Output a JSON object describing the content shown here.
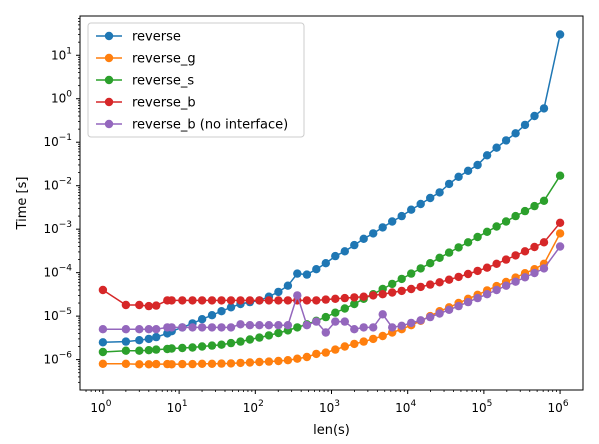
{
  "chart_data": {
    "type": "line",
    "title": "",
    "xlabel": "len(s)",
    "ylabel": "Time [s]",
    "xscale": "log",
    "yscale": "log",
    "xlim": [
      0.5,
      2000000
    ],
    "ylim": [
      2e-07,
      80
    ],
    "grid": false,
    "legend_position": "upper-left",
    "x_ticks": [
      {
        "value": 1,
        "base": "10",
        "exp": "0"
      },
      {
        "value": 10,
        "base": "10",
        "exp": "1"
      },
      {
        "value": 100,
        "base": "10",
        "exp": "2"
      },
      {
        "value": 1000,
        "base": "10",
        "exp": "3"
      },
      {
        "value": 10000,
        "base": "10",
        "exp": "4"
      },
      {
        "value": 100000,
        "base": "10",
        "exp": "5"
      },
      {
        "value": 1000000,
        "base": "10",
        "exp": "6"
      }
    ],
    "y_ticks": [
      {
        "value": 1e-06,
        "base": "10",
        "exp": "−6"
      },
      {
        "value": 1e-05,
        "base": "10",
        "exp": "−5"
      },
      {
        "value": 0.0001,
        "base": "10",
        "exp": "−4"
      },
      {
        "value": 0.001,
        "base": "10",
        "exp": "−3"
      },
      {
        "value": 0.01,
        "base": "10",
        "exp": "−2"
      },
      {
        "value": 0.1,
        "base": "10",
        "exp": "−1"
      },
      {
        "value": 1,
        "base": "10",
        "exp": "0"
      },
      {
        "value": 10,
        "base": "10",
        "exp": "1"
      }
    ],
    "x": [
      1,
      2,
      3,
      4,
      5,
      7,
      8,
      11,
      15,
      20,
      27,
      36,
      48,
      64,
      85,
      113,
      151,
      201,
      268,
      356,
      475,
      632,
      842,
      1121,
      1493,
      1989,
      2650,
      3530,
      4702,
      6264,
      8343,
      11114,
      14804,
      19721,
      26270,
      34994,
      46615,
      62096,
      82717,
      110187,
      146779,
      195523,
      260453,
      346946,
      462163,
      615642,
      1000000
    ],
    "series": [
      {
        "name": "reverse",
        "color": "#1f77b4",
        "values": [
          2.5e-06,
          2.6e-06,
          2.8e-06,
          3e-06,
          3.3e-06,
          4e-06,
          4.5e-06,
          5.5e-06,
          6.8e-06,
          8.5e-06,
          1.05e-05,
          1.3e-05,
          1.6e-05,
          1.9e-05,
          2.1e-05,
          2.3e-05,
          2.8e-05,
          3.6e-05,
          5e-05,
          9.5e-05,
          9e-05,
          0.00012,
          0.000165,
          0.00024,
          0.00031,
          0.00043,
          0.0006,
          0.0008,
          0.0011,
          0.0015,
          0.002,
          0.0028,
          0.0038,
          0.0052,
          0.007,
          0.011,
          0.016,
          0.022,
          0.03,
          0.05,
          0.075,
          0.11,
          0.16,
          0.25,
          0.4,
          0.6,
          30
        ]
      },
      {
        "name": "reverse_g",
        "color": "#ff7f0e",
        "values": [
          8e-07,
          8e-07,
          7.8e-07,
          7.8e-07,
          7.9e-07,
          7.9e-07,
          7.8e-07,
          7.9e-07,
          7.9e-07,
          8e-07,
          8e-07,
          8.1e-07,
          8.2e-07,
          8.4e-07,
          8.6e-07,
          8.8e-07,
          9e-07,
          9.3e-07,
          9.7e-07,
          1.05e-06,
          1.15e-06,
          1.35e-06,
          1.45e-06,
          1.7e-06,
          2e-06,
          2.3e-06,
          2.6e-06,
          3e-06,
          3.5e-06,
          4.2e-06,
          5e-06,
          6.2e-06,
          7.8e-06,
          1e-05,
          1.3e-05,
          1.6e-05,
          2e-05,
          2.5e-05,
          3.1e-05,
          3.9e-05,
          4.9e-05,
          6.1e-05,
          7.7e-05,
          9.7e-05,
          0.00012,
          0.00016,
          0.0008
        ]
      },
      {
        "name": "reverse_s",
        "color": "#2ca02c",
        "values": [
          1.5e-06,
          1.6e-06,
          1.6e-06,
          1.65e-06,
          1.7e-06,
          1.75e-06,
          1.8e-06,
          1.85e-06,
          1.9e-06,
          2e-06,
          2.1e-06,
          2.2e-06,
          2.4e-06,
          2.6e-06,
          2.9e-06,
          3.2e-06,
          3.6e-06,
          4.1e-06,
          4.7e-06,
          5.5e-06,
          6.5e-06,
          7.8e-06,
          9.5e-06,
          1.2e-05,
          1.5e-05,
          1.9e-05,
          2.5e-05,
          3.2e-05,
          4.2e-05,
          5.5e-05,
          7.2e-05,
          9.5e-05,
          0.000125,
          0.000165,
          0.00022,
          0.00029,
          0.00038,
          0.0005,
          0.00066,
          0.00087,
          0.00115,
          0.0015,
          0.002,
          0.0026,
          0.0034,
          0.0045,
          0.017
        ]
      },
      {
        "name": "reverse_b",
        "color": "#d62728",
        "values": [
          4e-05,
          1.8e-05,
          1.8e-05,
          1.7e-05,
          1.75e-05,
          2.3e-05,
          2.3e-05,
          2.3e-05,
          2.3e-05,
          2.3e-05,
          2.3e-05,
          2.3e-05,
          2.3e-05,
          2.3e-05,
          2.3e-05,
          2.3e-05,
          2.3e-05,
          2.3e-05,
          2.3e-05,
          2.3e-05,
          2.3e-05,
          2.3e-05,
          2.4e-05,
          2.5e-05,
          2.6e-05,
          2.7e-05,
          2.8e-05,
          3e-05,
          3.2e-05,
          3.5e-05,
          3.8e-05,
          4.2e-05,
          4.7e-05,
          5.3e-05,
          6e-05,
          6.9e-05,
          8e-05,
          9.3e-05,
          0.00011,
          0.00013,
          0.00016,
          0.0002,
          0.00025,
          0.00031,
          0.00039,
          0.0005,
          0.0014
        ]
      },
      {
        "name": "reverse_b (no interface)",
        "color": "#9467bd",
        "values": [
          5e-06,
          5e-06,
          5e-06,
          5e-06,
          5e-06,
          5.5e-06,
          5.5e-06,
          5.5e-06,
          5.5e-06,
          5.5e-06,
          5.5e-06,
          5.5e-06,
          5.5e-06,
          6.5e-06,
          6.2e-06,
          6.2e-06,
          6.2e-06,
          6.2e-06,
          6.2e-06,
          3e-05,
          6.2e-06,
          7.5e-06,
          4.2e-06,
          7.5e-06,
          7.5e-06,
          5e-06,
          5.5e-06,
          5.5e-06,
          1.1e-05,
          5.5e-06,
          6e-06,
          7e-06,
          8e-06,
          9.5e-06,
          1.15e-05,
          1.4e-05,
          1.7e-05,
          2.1e-05,
          2.6e-05,
          3.2e-05,
          4e-05,
          5e-05,
          6.2e-05,
          7.8e-05,
          9.8e-05,
          0.000125,
          0.0004
        ]
      }
    ]
  }
}
